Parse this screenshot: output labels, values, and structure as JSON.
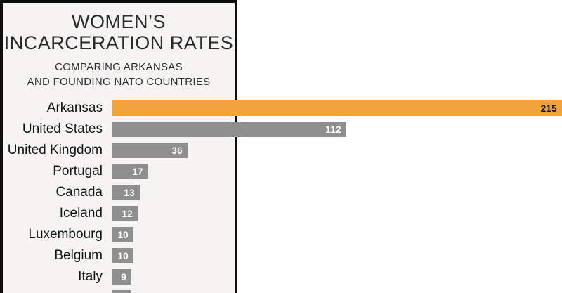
{
  "panel": {
    "title_lines": [
      "WOMEN’S",
      "INCARCERATION RATES"
    ],
    "subtitle_lines": [
      "COMPARING ARKANSAS",
      "AND FOUNDING NATO COUNTRIES"
    ]
  },
  "chart_data": {
    "type": "bar",
    "orientation": "horizontal",
    "title": "WOMEN’S INCARCERATION RATES",
    "subtitle": "COMPARING ARKANSAS AND FOUNDING NATO COUNTRIES",
    "categories": [
      "Arkansas",
      "United States",
      "United Kingdom",
      "Portugal",
      "Canada",
      "Iceland",
      "Luxembourg",
      "Belgium",
      "Italy"
    ],
    "values": [
      215,
      112,
      36,
      17,
      13,
      12,
      10,
      10,
      9
    ],
    "highlight_category": "Arkansas",
    "value_labels_shown": true,
    "xlim": [
      0,
      215
    ],
    "legend": "none",
    "grid": "off",
    "colors": {
      "highlight_bar": "#F0A23C",
      "default_bar": "#8F8F8F",
      "value_label_on_highlight": "#111111",
      "value_label_default": "#FFFFFF",
      "panel_background": "#F5F4F3",
      "panel_border": "#0E0E0E",
      "text": "#141414"
    },
    "cut_off_next_bar": {
      "visible": true,
      "approx_value": 9
    }
  }
}
